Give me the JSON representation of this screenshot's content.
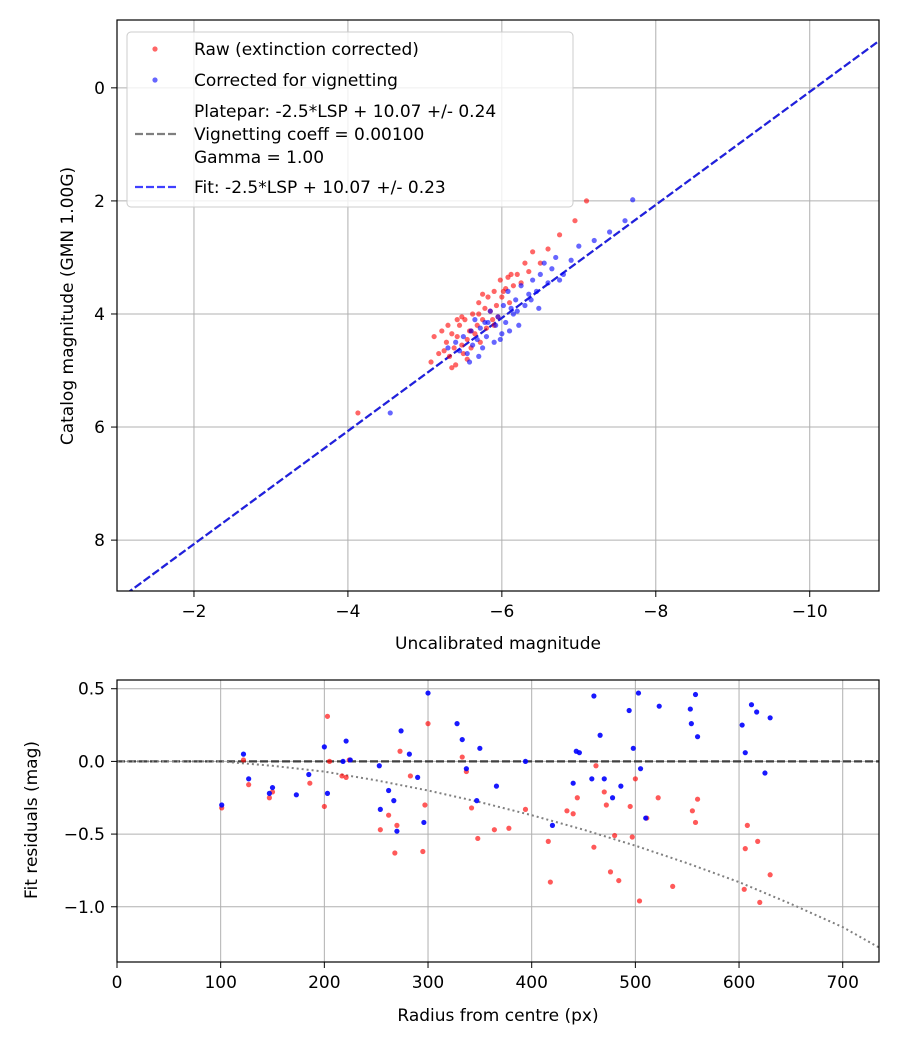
{
  "chart_data": [
    {
      "type": "scatter",
      "title": "",
      "xlabel": "Uncalibrated magnitude",
      "ylabel": "Catalog magnitude (GMN 1.00G)",
      "xlim": [
        -1.0,
        -10.9
      ],
      "ylim": [
        -1.2,
        8.9
      ],
      "x_inverted": true,
      "y_inverted": true,
      "grid": true,
      "x_ticks": [
        -2,
        -4,
        -6,
        -8,
        -10
      ],
      "x_tick_labels": [
        "−2",
        "−4",
        "−6",
        "−8",
        "−10"
      ],
      "y_ticks": [
        0,
        2,
        4,
        6,
        8
      ],
      "y_tick_labels": [
        "0",
        "2",
        "4",
        "6",
        "8"
      ],
      "legend_position": "top-left",
      "legend": [
        {
          "label": "Raw (extinction corrected)",
          "kind": "marker",
          "color": "#ff0000"
        },
        {
          "label": "Corrected for vignetting",
          "kind": "marker",
          "color": "#0000ff"
        },
        {
          "label": "Platepar: -2.5*LSP + 10.07 +/- 0.24",
          "kind": "dashed",
          "color": "#7f7f7f"
        },
        {
          "label": "Vignetting coeff = 0.00100",
          "kind": "text",
          "color": "#7f7f7f"
        },
        {
          "label": "Gamma = 1.00",
          "kind": "text",
          "color": "#7f7f7f"
        },
        {
          "label": "Fit: -2.5*LSP + 10.07 +/- 0.23",
          "kind": "dashed",
          "color": "#0000ff"
        }
      ],
      "lines": [
        {
          "name": "Platepar",
          "color": "#7f7f7f",
          "x": [
            -1.0,
            -10.9
          ],
          "y": [
            9.07,
            -0.83
          ]
        },
        {
          "name": "Fit",
          "color": "#0000ff",
          "x": [
            -1.0,
            -10.9
          ],
          "y": [
            9.07,
            -0.83
          ]
        }
      ],
      "series": [
        {
          "name": "Raw (extinction corrected)",
          "color": "#ff0000",
          "x": [
            -4.13,
            -5.08,
            -5.12,
            -5.18,
            -5.22,
            -5.25,
            -5.28,
            -5.3,
            -5.32,
            -5.35,
            -5.38,
            -5.4,
            -5.42,
            -5.45,
            -5.48,
            -5.5,
            -5.52,
            -5.55,
            -5.58,
            -5.6,
            -5.62,
            -5.65,
            -5.68,
            -5.7,
            -5.72,
            -5.75,
            -5.78,
            -5.8,
            -5.82,
            -5.85,
            -5.88,
            -5.9,
            -5.93,
            -5.95,
            -5.98,
            -6.0,
            -6.05,
            -6.08,
            -6.1,
            -6.15,
            -6.2,
            -6.25,
            -6.3,
            -6.35,
            -6.4,
            -6.5,
            -6.6,
            -6.75,
            -6.95,
            -7.1,
            -5.35,
            -5.42,
            -5.6,
            -5.75,
            -5.55,
            -5.48,
            -5.9,
            -6.12,
            -6.02,
            -5.7
          ],
          "y": [
            5.75,
            4.85,
            4.4,
            4.7,
            4.3,
            4.65,
            4.5,
            4.2,
            4.75,
            4.35,
            4.6,
            4.9,
            4.4,
            4.2,
            4.55,
            4.7,
            4.1,
            4.45,
            4.3,
            4.6,
            4.0,
            4.35,
            4.2,
            3.8,
            4.5,
            4.1,
            3.9,
            4.25,
            3.7,
            3.95,
            4.1,
            3.6,
            3.85,
            4.05,
            3.4,
            3.7,
            3.55,
            3.35,
            3.8,
            3.5,
            3.3,
            3.45,
            3.1,
            3.25,
            2.9,
            3.1,
            2.85,
            2.6,
            2.35,
            2.0,
            4.95,
            4.1,
            4.3,
            3.65,
            4.8,
            4.05,
            4.2,
            3.3,
            3.6,
            4.0
          ]
        },
        {
          "name": "Corrected for vignetting",
          "color": "#0000ff",
          "x": [
            -4.55,
            -5.3,
            -5.4,
            -5.45,
            -5.5,
            -5.55,
            -5.6,
            -5.62,
            -5.65,
            -5.68,
            -5.7,
            -5.72,
            -5.75,
            -5.78,
            -5.8,
            -5.85,
            -5.9,
            -5.92,
            -5.95,
            -6.0,
            -6.02,
            -6.05,
            -6.08,
            -6.1,
            -6.15,
            -6.18,
            -6.2,
            -6.25,
            -6.3,
            -6.35,
            -6.4,
            -6.45,
            -6.5,
            -6.55,
            -6.6,
            -6.65,
            -6.7,
            -6.8,
            -6.9,
            -7.0,
            -7.2,
            -7.4,
            -7.6,
            -7.7,
            -5.58,
            -5.82,
            -6.12,
            -6.38,
            -6.75,
            -5.98,
            -6.22,
            -6.48
          ],
          "y": [
            5.75,
            4.6,
            4.5,
            4.65,
            4.4,
            4.7,
            4.3,
            4.55,
            4.1,
            4.45,
            4.75,
            4.25,
            4.6,
            4.15,
            4.4,
            3.95,
            4.5,
            4.2,
            4.05,
            4.35,
            3.85,
            4.15,
            3.6,
            4.3,
            4.0,
            3.75,
            3.95,
            3.5,
            3.85,
            3.65,
            3.4,
            3.6,
            3.3,
            3.1,
            3.45,
            3.2,
            3.0,
            3.3,
            3.05,
            2.8,
            2.7,
            2.55,
            2.35,
            1.98,
            4.85,
            4.15,
            3.9,
            3.75,
            3.4,
            4.45,
            4.2,
            3.9
          ]
        }
      ]
    },
    {
      "type": "scatter",
      "title": "",
      "xlabel": "Radius from centre (px)",
      "ylabel": "Fit residuals (mag)",
      "xlim": [
        0,
        735
      ],
      "ylim": [
        -1.38,
        0.56
      ],
      "grid": true,
      "x_ticks": [
        0,
        100,
        200,
        300,
        400,
        500,
        600,
        700
      ],
      "x_tick_labels": [
        "0",
        "100",
        "200",
        "300",
        "400",
        "500",
        "600",
        "700"
      ],
      "y_ticks": [
        0.5,
        0.0,
        -0.5,
        -1.0
      ],
      "y_tick_labels": [
        "0.5",
        "0.0",
        "−0.5",
        "−1.0"
      ],
      "reference_line": {
        "y": 0,
        "color": "#404040",
        "style": "dashed"
      },
      "vignetting_curve": {
        "color": "#808080",
        "style": "dotted",
        "x": [
          0,
          100,
          150,
          200,
          250,
          300,
          350,
          400,
          450,
          500,
          550,
          600,
          650,
          700,
          735
        ],
        "y": [
          0,
          0,
          -0.03,
          -0.07,
          -0.13,
          -0.2,
          -0.28,
          -0.37,
          -0.47,
          -0.58,
          -0.7,
          -0.83,
          -0.98,
          -1.14,
          -1.28
        ]
      },
      "series": [
        {
          "name": "Raw (extinction corrected)",
          "color": "#ff0000",
          "x": [
            101,
            122,
            127,
            147,
            150,
            186,
            200,
            203,
            205,
            217,
            221,
            224,
            254,
            262,
            268,
            270,
            273,
            283,
            295,
            297,
            300,
            333,
            337,
            342,
            348,
            364,
            378,
            394,
            416,
            418,
            434,
            440,
            444,
            460,
            462,
            470,
            472,
            476,
            480,
            484,
            495,
            497,
            500,
            504,
            511,
            522,
            536,
            555,
            558,
            560,
            605,
            606,
            608,
            618,
            620,
            630
          ],
          "y": [
            -0.32,
            0.01,
            -0.16,
            -0.25,
            -0.21,
            -0.15,
            -0.31,
            0.31,
            0.0,
            -0.1,
            -0.11,
            0.01,
            -0.47,
            -0.37,
            -0.63,
            -0.44,
            0.07,
            -0.1,
            -0.62,
            -0.3,
            0.26,
            0.03,
            -0.07,
            -0.32,
            -0.53,
            -0.47,
            -0.46,
            -0.33,
            -0.55,
            -0.83,
            -0.34,
            -0.36,
            -0.25,
            -0.59,
            -0.03,
            -0.21,
            -0.3,
            -0.76,
            -0.51,
            -0.82,
            -0.31,
            -0.52,
            -0.12,
            -0.96,
            -0.39,
            -0.25,
            -0.86,
            -0.34,
            -0.42,
            -0.26,
            -0.88,
            -0.6,
            -0.44,
            -0.55,
            -0.97,
            -0.78
          ]
        },
        {
          "name": "Corrected for vignetting",
          "color": "#0000ff",
          "x": [
            101,
            122,
            127,
            147,
            150,
            173,
            185,
            200,
            203,
            218,
            221,
            225,
            253,
            254,
            262,
            267,
            270,
            274,
            282,
            290,
            296,
            300,
            328,
            333,
            337,
            347,
            350,
            366,
            394,
            420,
            440,
            443,
            446,
            458,
            460,
            466,
            470,
            478,
            486,
            494,
            498,
            503,
            505,
            510,
            523,
            553,
            554,
            558,
            560,
            603,
            606,
            612,
            617,
            625,
            630
          ],
          "y": [
            -0.3,
            0.05,
            -0.12,
            -0.22,
            -0.18,
            -0.23,
            -0.09,
            0.1,
            -0.22,
            0.0,
            0.14,
            0.01,
            -0.03,
            -0.33,
            -0.2,
            -0.27,
            -0.48,
            0.21,
            0.05,
            -0.11,
            -0.42,
            0.47,
            0.26,
            0.15,
            -0.05,
            -0.27,
            0.09,
            -0.17,
            0.0,
            -0.44,
            -0.15,
            0.07,
            0.06,
            -0.12,
            0.45,
            0.18,
            -0.12,
            -0.25,
            -0.17,
            0.35,
            0.09,
            0.47,
            -0.05,
            -0.39,
            0.38,
            0.36,
            0.26,
            0.46,
            0.17,
            0.25,
            0.06,
            0.39,
            0.34,
            -0.08,
            0.3
          ]
        }
      ]
    }
  ]
}
